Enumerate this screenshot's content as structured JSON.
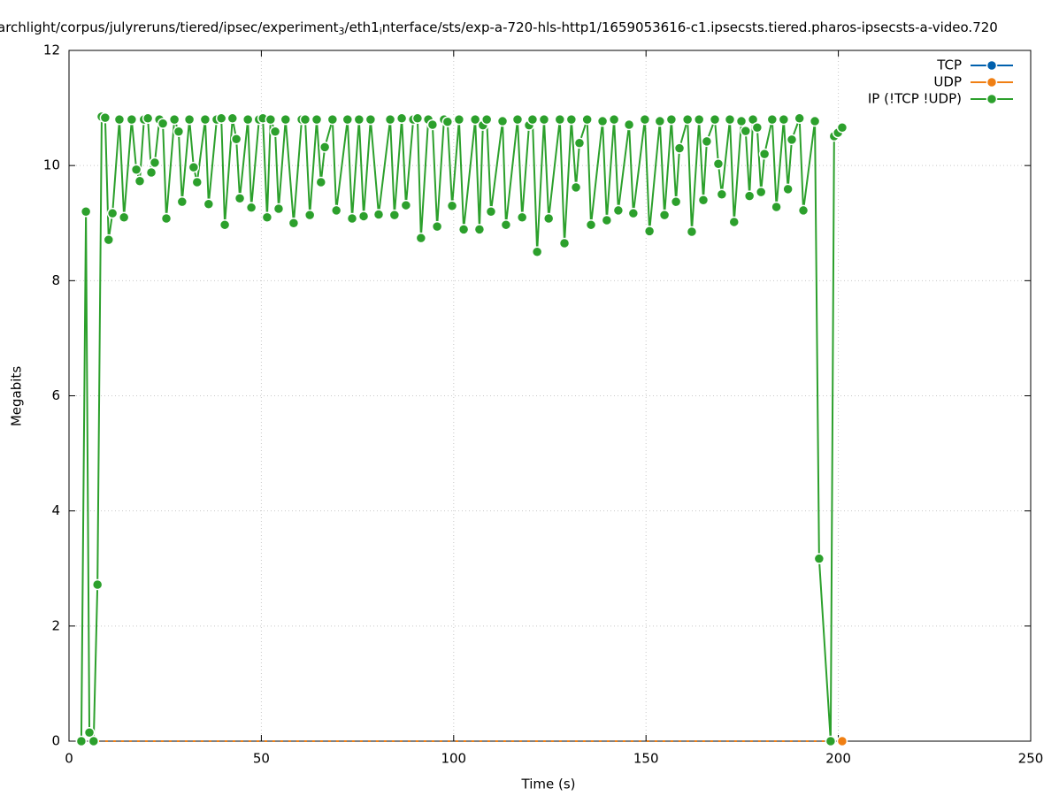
{
  "chart_data": {
    "type": "line",
    "title_parts": [
      "archlight/corpus/julyreruns/tiered/ipsec/experiment",
      "3",
      "/eth1",
      "i",
      "nterface/sts/exp-a-720-hls-http1/1659053616-c1.ipsecsts.tiered.pharos-ipsecsts-a-video.720"
    ],
    "xlabel": "Time (s)",
    "ylabel": "Megabits",
    "xlim": [
      0,
      250
    ],
    "xticks": [
      0,
      50,
      100,
      150,
      200,
      250
    ],
    "ylim": [
      0,
      12
    ],
    "yticks": [
      0,
      2,
      4,
      6,
      8,
      10,
      12
    ],
    "grid": true,
    "legend": "top-right",
    "series": [
      {
        "name": "TCP",
        "color": "#0060ad",
        "x": [],
        "values": []
      },
      {
        "name": "UDP",
        "color": "#f07f13",
        "x": [
          3.2,
          201.0
        ],
        "values": [
          0,
          0
        ]
      },
      {
        "name": "IP (!TCP  !UDP)",
        "color": "#2ca02c",
        "x": [
          3.2,
          4.4,
          5.3,
          6.4,
          7.4,
          8.5,
          9.4,
          10.3,
          11.3,
          13.1,
          14.3,
          16.3,
          17.5,
          18.4,
          19.5,
          20.5,
          21.4,
          22.3,
          23.5,
          24.4,
          25.3,
          27.4,
          28.5,
          29.4,
          31.3,
          32.4,
          33.3,
          35.4,
          36.3,
          38.4,
          39.6,
          40.5,
          42.5,
          43.5,
          44.4,
          46.5,
          47.4,
          49.4,
          50.4,
          51.5,
          52.4,
          53.6,
          54.5,
          56.3,
          58.4,
          60.5,
          61.4,
          62.6,
          64.4,
          65.5,
          66.5,
          68.5,
          69.5,
          72.4,
          73.6,
          75.4,
          76.6,
          78.4,
          80.5,
          83.5,
          84.6,
          86.5,
          87.6,
          89.5,
          90.6,
          91.5,
          93.4,
          94.5,
          95.7,
          97.5,
          98.4,
          99.6,
          101.4,
          102.6,
          105.6,
          106.7,
          107.6,
          108.6,
          109.7,
          112.7,
          113.6,
          116.6,
          117.8,
          119.6,
          120.5,
          121.7,
          123.5,
          124.7,
          127.6,
          128.8,
          130.6,
          131.8,
          132.7,
          134.7,
          135.7,
          138.7,
          139.8,
          141.7,
          142.8,
          145.6,
          146.7,
          149.7,
          150.9,
          153.6,
          154.8,
          156.6,
          157.8,
          158.7,
          160.8,
          161.9,
          163.8,
          164.9,
          165.8,
          167.9,
          168.8,
          169.7,
          171.8,
          172.9,
          174.8,
          175.9,
          176.9,
          177.8,
          178.9,
          179.9,
          180.8,
          182.8,
          183.9,
          185.8,
          186.9,
          187.9,
          189.9,
          190.9,
          193.9,
          195.0,
          198.0,
          198.9,
          199.9,
          201.0
        ],
        "values": [
          0,
          9.2,
          0.15,
          0,
          2.72,
          10.85,
          10.83,
          8.71,
          9.17,
          10.8,
          9.1,
          10.8,
          9.93,
          9.73,
          10.8,
          10.82,
          9.88,
          10.05,
          10.8,
          10.73,
          9.08,
          10.8,
          10.59,
          9.37,
          10.8,
          9.97,
          9.71,
          10.8,
          9.33,
          10.8,
          10.82,
          8.97,
          10.82,
          10.46,
          9.43,
          10.8,
          9.27,
          10.8,
          10.82,
          9.1,
          10.8,
          10.59,
          9.25,
          10.8,
          9.0,
          10.8,
          10.8,
          9.14,
          10.8,
          9.71,
          10.32,
          10.8,
          9.22,
          10.8,
          9.08,
          10.8,
          9.12,
          10.8,
          9.15,
          10.8,
          9.14,
          10.82,
          9.31,
          10.8,
          10.82,
          8.74,
          10.8,
          10.71,
          8.94,
          10.8,
          10.76,
          9.3,
          10.8,
          8.89,
          10.8,
          8.89,
          10.7,
          10.8,
          9.2,
          10.77,
          8.97,
          10.8,
          9.1,
          10.7,
          10.8,
          8.5,
          10.8,
          9.08,
          10.8,
          8.65,
          10.8,
          9.62,
          10.39,
          10.8,
          8.97,
          10.77,
          9.05,
          10.8,
          9.22,
          10.71,
          9.17,
          10.8,
          8.86,
          10.77,
          9.14,
          10.8,
          9.37,
          10.3,
          10.8,
          8.85,
          10.8,
          9.4,
          10.42,
          10.8,
          10.03,
          9.5,
          10.8,
          9.02,
          10.77,
          10.6,
          9.47,
          10.8,
          10.66,
          9.54,
          10.2,
          10.8,
          9.28,
          10.8,
          9.59,
          10.45,
          10.82,
          9.22,
          10.77,
          3.17,
          0,
          10.51,
          10.57,
          10.66
        ]
      }
    ]
  }
}
